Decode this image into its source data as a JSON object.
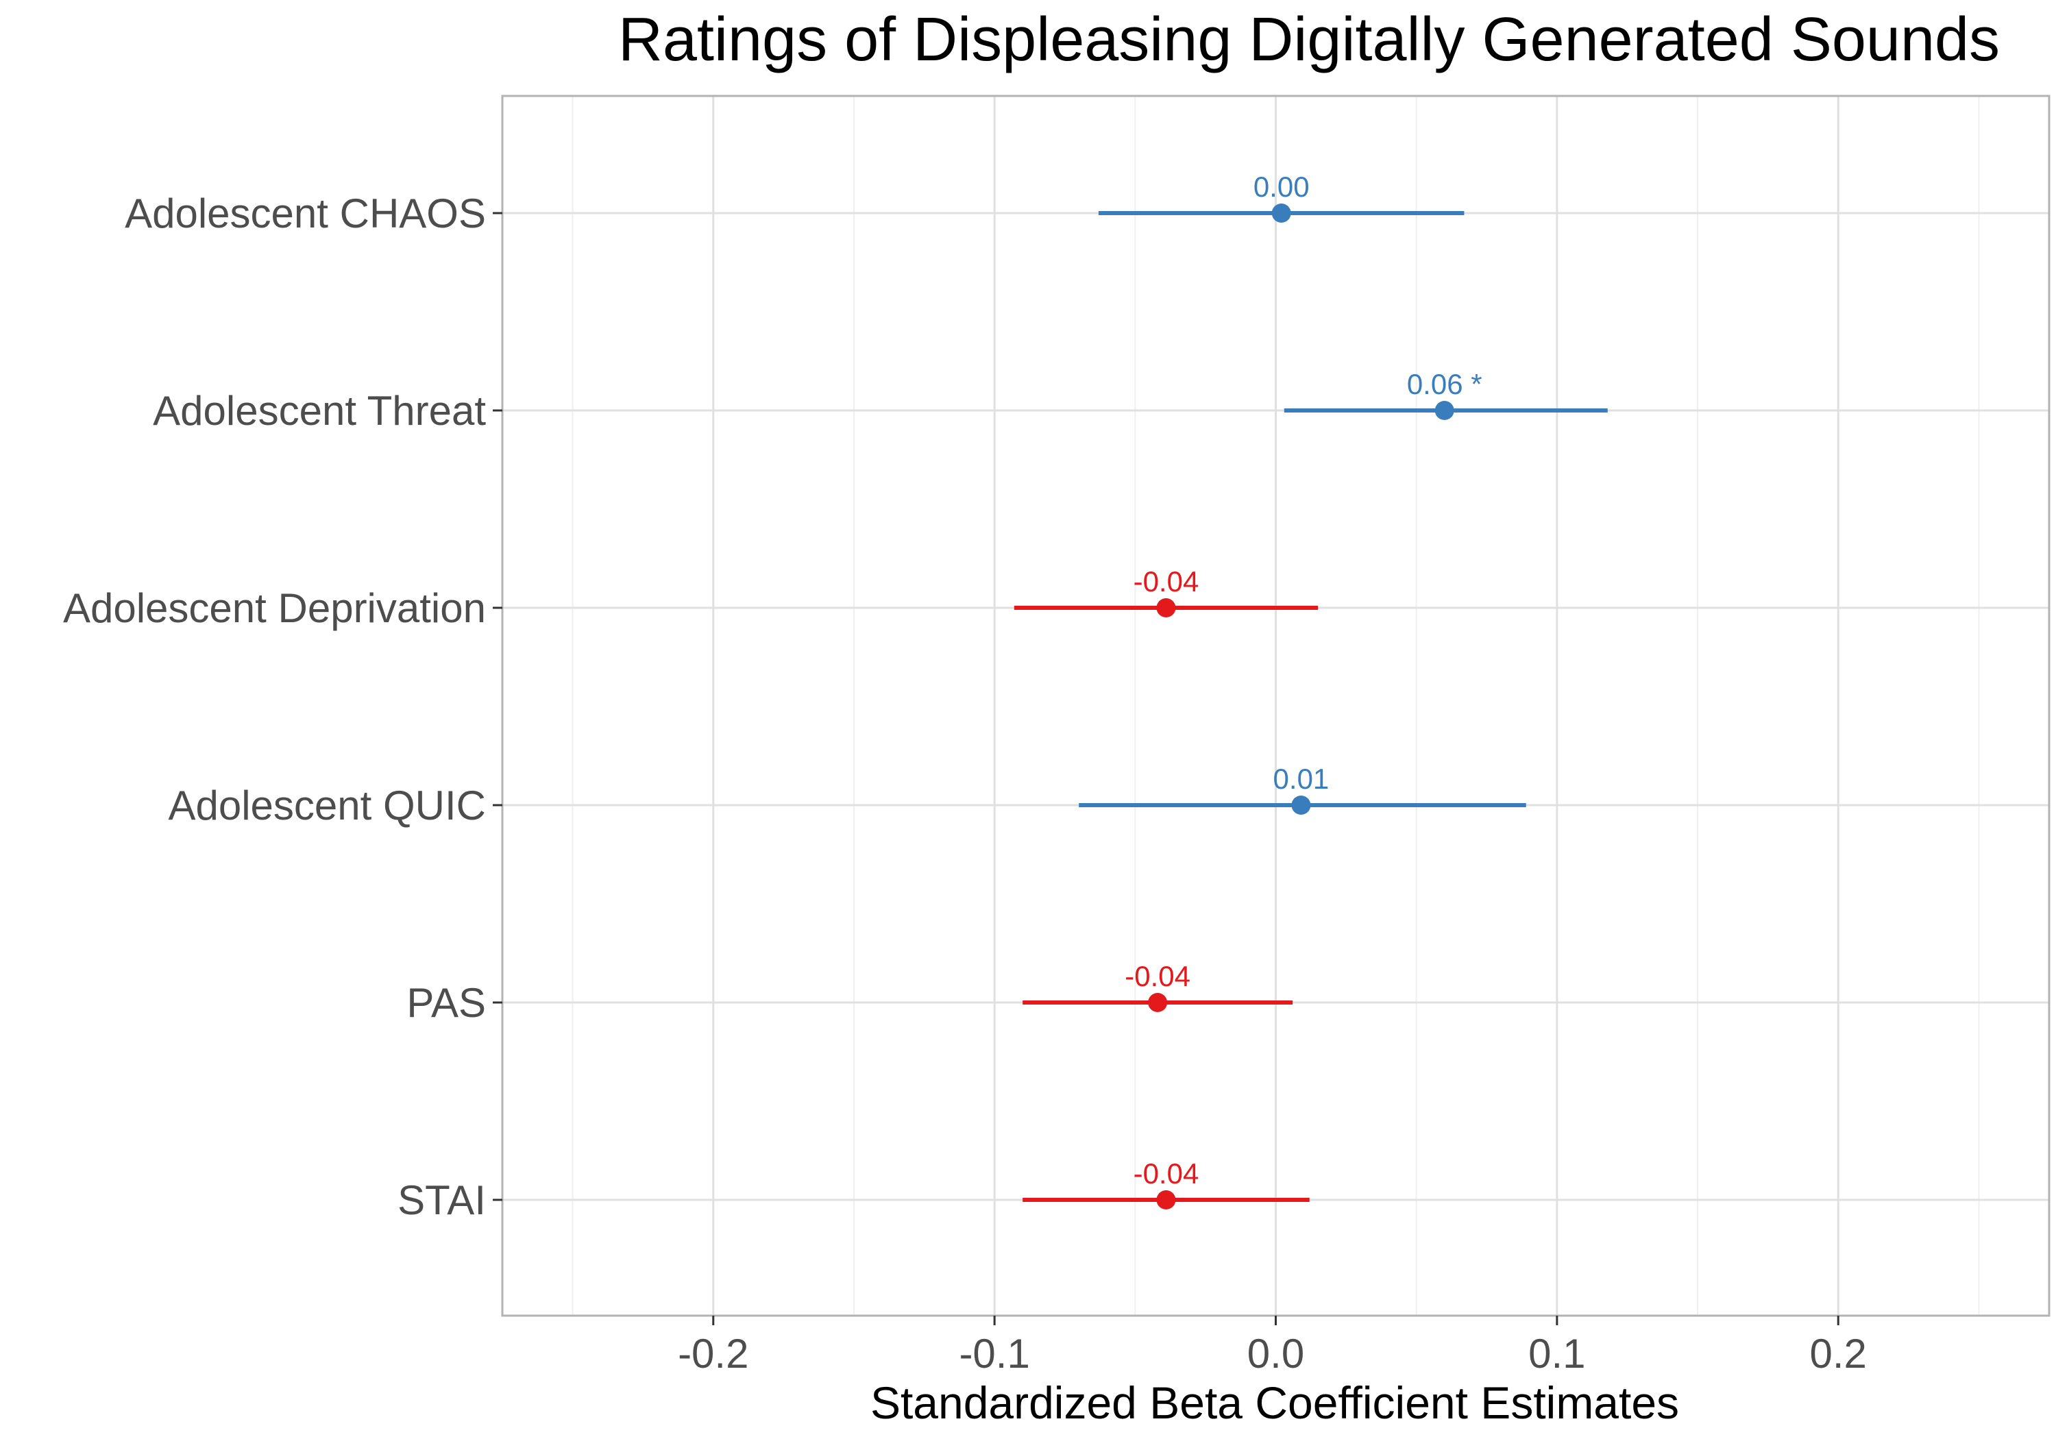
{
  "chart_data": {
    "type": "scatter",
    "subtype": "forest-plot",
    "title": "Ratings of Displeasing Digitally Generated Sounds",
    "xlabel": "Standardized Beta Coefficient Estimates",
    "ylabel": "",
    "xlim": [
      -0.275,
      0.275
    ],
    "x_ticks": [
      -0.2,
      -0.1,
      0.0,
      0.1,
      0.2
    ],
    "x_tick_labels": [
      "-0.2",
      "-0.1",
      "0.0",
      "0.1",
      "0.2"
    ],
    "grid": true,
    "legend": "none",
    "colors": {
      "positive": "#3a7dbd",
      "negative": "#e3191c"
    },
    "rows": [
      {
        "label": "Adolescent CHAOS",
        "estimate": 0.002,
        "ci_low": -0.063,
        "ci_high": 0.067,
        "value_label": "0.00",
        "sign": "positive"
      },
      {
        "label": "Adolescent Threat",
        "estimate": 0.06,
        "ci_low": 0.003,
        "ci_high": 0.118,
        "value_label": "0.06 *",
        "sign": "positive"
      },
      {
        "label": "Adolescent Deprivation",
        "estimate": -0.039,
        "ci_low": -0.093,
        "ci_high": 0.015,
        "value_label": "-0.04",
        "sign": "negative"
      },
      {
        "label": "Adolescent QUIC",
        "estimate": 0.009,
        "ci_low": -0.07,
        "ci_high": 0.089,
        "value_label": "0.01",
        "sign": "positive"
      },
      {
        "label": "PAS",
        "estimate": -0.042,
        "ci_low": -0.09,
        "ci_high": 0.006,
        "value_label": "-0.04",
        "sign": "negative"
      },
      {
        "label": "STAI",
        "estimate": -0.039,
        "ci_low": -0.09,
        "ci_high": 0.012,
        "value_label": "-0.04",
        "sign": "negative"
      }
    ]
  }
}
